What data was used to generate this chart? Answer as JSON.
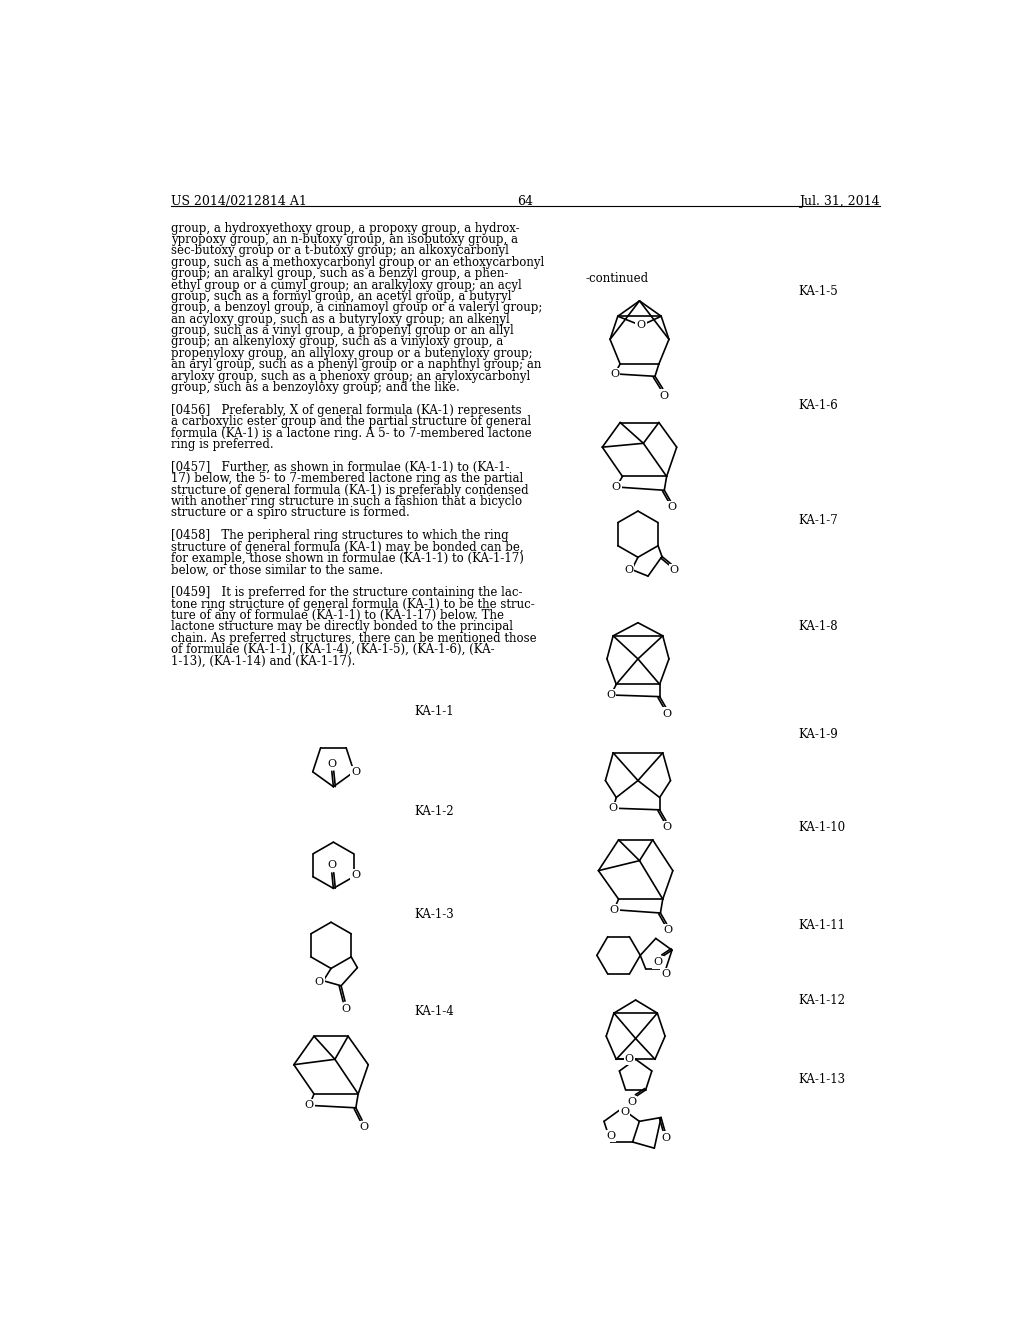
{
  "page_width": 10.24,
  "page_height": 13.2,
  "dpi": 100,
  "background_color": "#ffffff",
  "header_left": "US 2014/0212814 A1",
  "header_right": "Jul. 31, 2014",
  "page_number": "64",
  "continued_label": "-continued",
  "body_text": [
    "group, a hydroxyethoxy group, a propoxy group, a hydrox-",
    "ypropoxy group, an n-butoxy group, an isobutoxy group, a",
    "sec-butoxy group or a t-butoxy group; an alkoxycarbonyl",
    "group, such as a methoxycarbonyl group or an ethoxycarbonyl",
    "group; an aralkyl group, such as a benzyl group, a phen-",
    "ethyl group or a cumyl group; an aralkyloxy group; an acyl",
    "group, such as a formyl group, an acetyl group, a butyryl",
    "group, a benzoyl group, a cinnamoyl group or a valeryl group;",
    "an acyloxy group, such as a butyryloxy group; an alkenyl",
    "group, such as a vinyl group, a propenyl group or an allyl",
    "group; an alkenyloxy group, such as a vinyloxy group, a",
    "propenyloxy group, an allyloxy group or a butenyloxy group;",
    "an aryl group, such as a phenyl group or a naphthyl group; an",
    "aryloxy group, such as a phenoxy group; an aryloxycarbonyl",
    "group, such as a benzoyloxy group; and the like.",
    "",
    "[0456]   Preferably, X of general formula (KA-1) represents",
    "a carboxylic ester group and the partial structure of general",
    "formula (KA-1) is a lactone ring. A 5- to 7-membered lactone",
    "ring is preferred.",
    "",
    "[0457]   Further, as shown in formulae (KA-1-1) to (KA-1-",
    "17) below, the 5- to 7-membered lactone ring as the partial",
    "structure of general formula (KA-1) is preferably condensed",
    "with another ring structure in such a fashion that a bicyclo",
    "structure or a spiro structure is formed.",
    "",
    "[0458]   The peripheral ring structures to which the ring",
    "structure of general formula (KA-1) may be bonded can be,",
    "for example, those shown in formulae (KA-1-1) to (KA-1-17)",
    "below, or those similar to the same.",
    "",
    "[0459]   It is preferred for the structure containing the lac-",
    "tone ring structure of general formula (KA-1) to be the struc-",
    "ture of any of formulae (KA-1-1) to (KA-1-17) below. The",
    "lactone structure may be directly bonded to the principal",
    "chain. As preferred structures, there can be mentioned those",
    "of formulae (KA-1-1), (KA-1-4), (KA-1-5), (KA-1-6), (KA-",
    "1-13), (KA-1-14) and (KA-1-17)."
  ]
}
